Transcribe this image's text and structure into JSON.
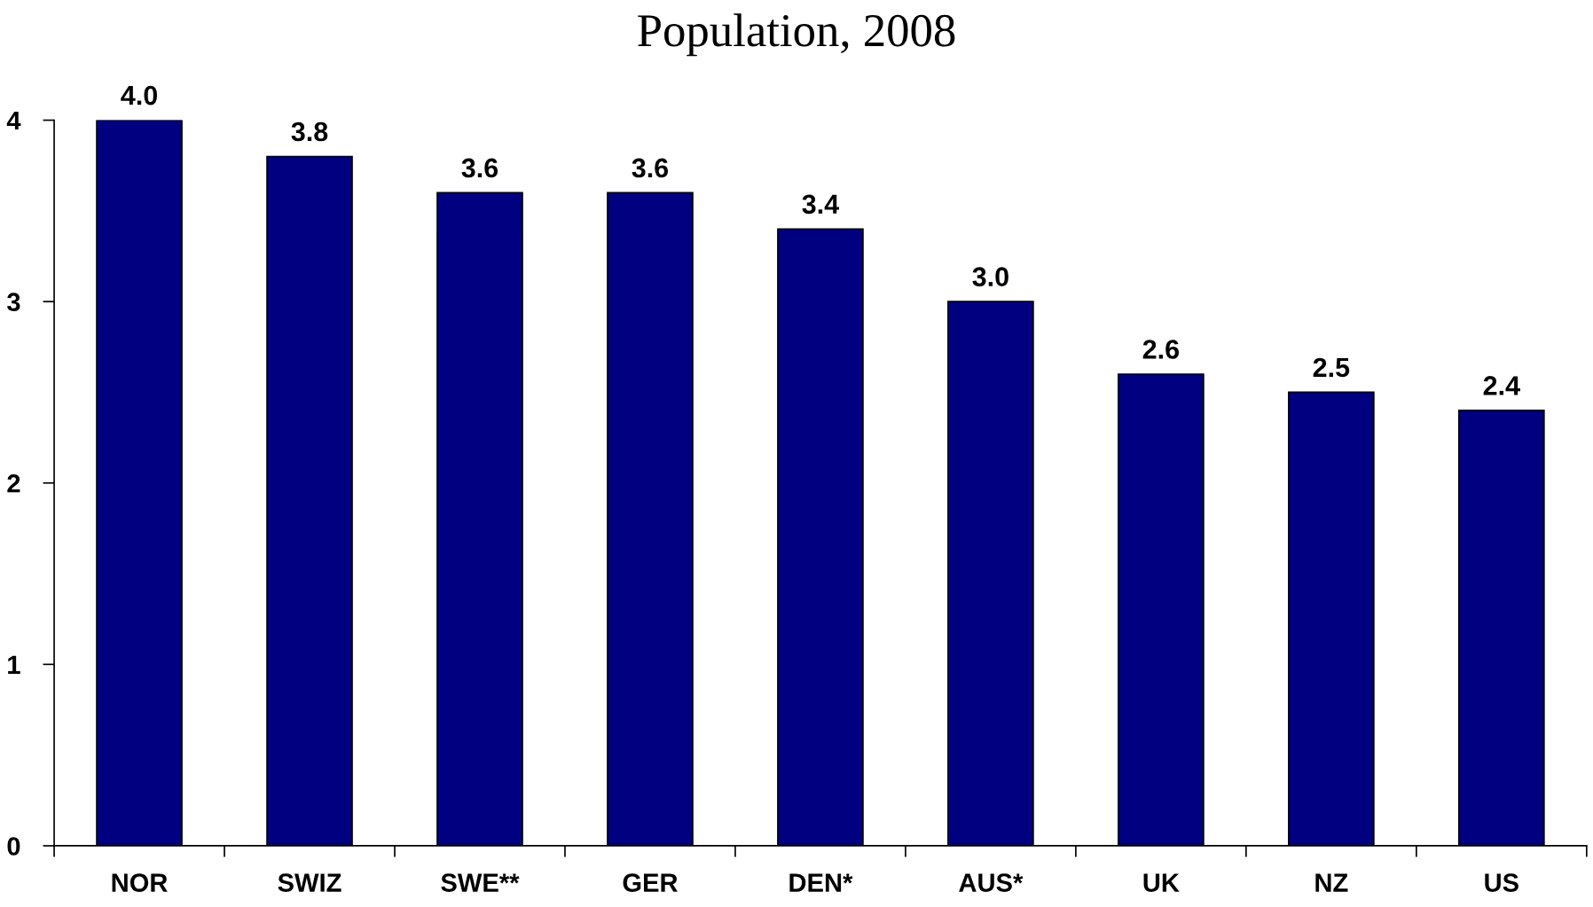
{
  "chart_data": {
    "type": "bar",
    "title": "Population, 2008",
    "categories": [
      "NOR",
      "SWIZ",
      "SWE**",
      "GER",
      "DEN*",
      "AUS*",
      "UK",
      "NZ",
      "US"
    ],
    "values": [
      4.0,
      3.8,
      3.6,
      3.6,
      3.4,
      3.0,
      2.6,
      2.5,
      2.4
    ],
    "value_labels": [
      "4.0",
      "3.8",
      "3.6",
      "3.6",
      "3.4",
      "3.0",
      "2.6",
      "2.5",
      "2.4"
    ],
    "color": "#000080",
    "ylim": [
      0,
      4
    ],
    "yticks": [
      0,
      1,
      2,
      3,
      4
    ],
    "grid": false,
    "legend": false
  }
}
